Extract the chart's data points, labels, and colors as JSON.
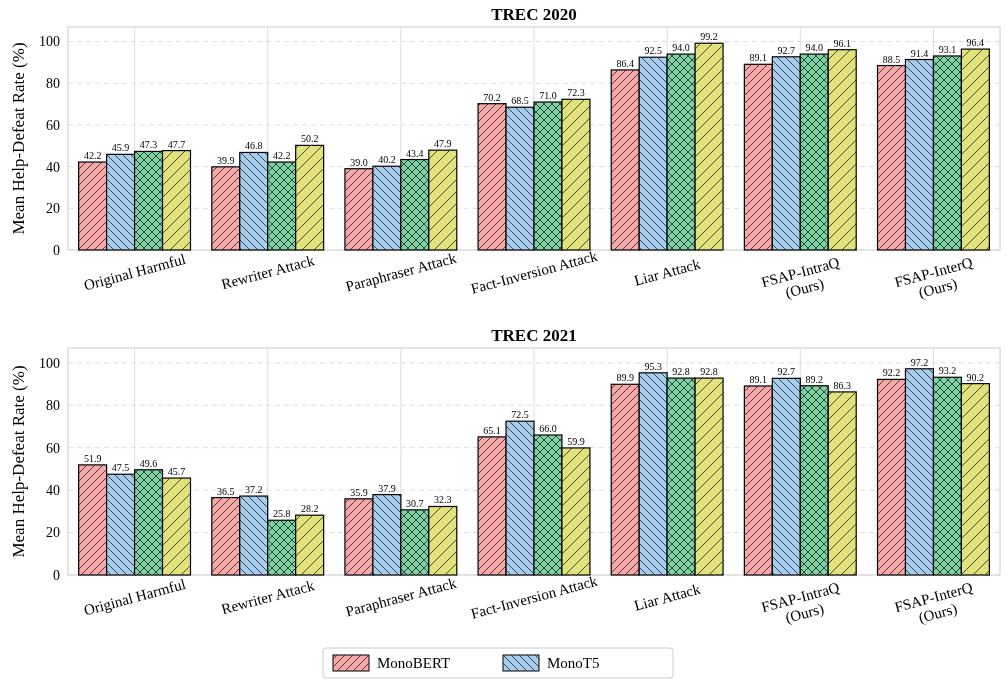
{
  "chart_data": [
    {
      "type": "bar",
      "title": "TREC 2020",
      "ylabel": "Mean Help-Defeat Rate (%)",
      "categories": [
        "Original Harmful",
        "Rewriter Attack",
        "Paraphraser Attack",
        "Fact-Inversion Attack",
        "Liar Attack",
        "FSAP-IntraQ\n(Ours)",
        "FSAP-InterQ\n(Ours)"
      ],
      "series": [
        {
          "name": "MonoBERT",
          "color": "#f6a7a7",
          "values": [
            42.2,
            39.9,
            39.0,
            70.2,
            86.4,
            89.1,
            88.5
          ],
          "value_labels": [
            "42.2",
            "39.9",
            "39.0",
            "70.2",
            "86.4",
            "89.1",
            "88.5"
          ]
        },
        {
          "name": "MonoT5",
          "color": "#a7cdee",
          "values": [
            45.9,
            46.8,
            40.2,
            68.5,
            92.5,
            92.7,
            91.4
          ],
          "value_labels": [
            "45.9",
            "46.8",
            "40.2",
            "68.5",
            "92.5",
            "92.7",
            "91.4"
          ]
        },
        {
          "color": "#7dd3a2",
          "values": [
            47.3,
            42.2,
            43.4,
            71.0,
            94.0,
            94.0,
            93.1
          ],
          "value_labels": [
            "47.3",
            "42.2",
            "43.4",
            "71.0",
            "94.0",
            "94.0",
            "93.1"
          ]
        },
        {
          "color": "#e2e27c",
          "values": [
            47.7,
            50.2,
            47.9,
            72.3,
            99.2,
            96.1,
            96.4
          ],
          "value_labels": [
            "47.7",
            "50.2",
            "47.9",
            "72.3",
            "99.2",
            "96.1",
            "96.4"
          ]
        }
      ],
      "ylim": [
        0,
        107
      ],
      "yticks": [
        0,
        20,
        40,
        60,
        80,
        100
      ],
      "grid": true,
      "legend": "bottom"
    },
    {
      "type": "bar",
      "title": "TREC 2021",
      "ylabel": "Mean Help-Defeat Rate (%)",
      "categories": [
        "Original Harmful",
        "Rewriter Attack",
        "Paraphraser Attack",
        "Fact-Inversion Attack",
        "Liar Attack",
        "FSAP-IntraQ\n(Ours)",
        "FSAP-InterQ\n(Ours)"
      ],
      "series": [
        {
          "name": "MonoBERT",
          "color": "#f6a7a7",
          "values": [
            51.9,
            36.5,
            35.9,
            65.1,
            89.9,
            89.1,
            92.2
          ],
          "value_labels": [
            "51.9",
            "36.5",
            "35.9",
            "65.1",
            "89.9",
            "89.1",
            "92.2"
          ]
        },
        {
          "name": "MonoT5",
          "color": "#a7cdee",
          "values": [
            47.5,
            37.2,
            37.9,
            72.5,
            95.3,
            92.7,
            97.2
          ],
          "value_labels": [
            "47.5",
            "37.2",
            "37.9",
            "72.5",
            "95.3",
            "92.7",
            "97.2"
          ]
        },
        {
          "color": "#7dd3a2",
          "values": [
            49.6,
            25.8,
            30.7,
            66.0,
            92.8,
            89.2,
            93.2
          ],
          "value_labels": [
            "49.6",
            "25.8",
            "30.7",
            "66.0",
            "92.8",
            "89.2",
            "93.2"
          ]
        },
        {
          "color": "#e2e27c",
          "values": [
            45.7,
            28.2,
            32.3,
            59.9,
            92.8,
            86.3,
            90.2
          ],
          "value_labels": [
            "45.7",
            "28.2",
            "32.3",
            "59.9",
            "92.8",
            "86.3",
            "90.2"
          ]
        }
      ],
      "ylim": [
        0,
        107
      ],
      "yticks": [
        0,
        20,
        40,
        60,
        80,
        100
      ],
      "grid": true,
      "legend": "bottom"
    }
  ]
}
